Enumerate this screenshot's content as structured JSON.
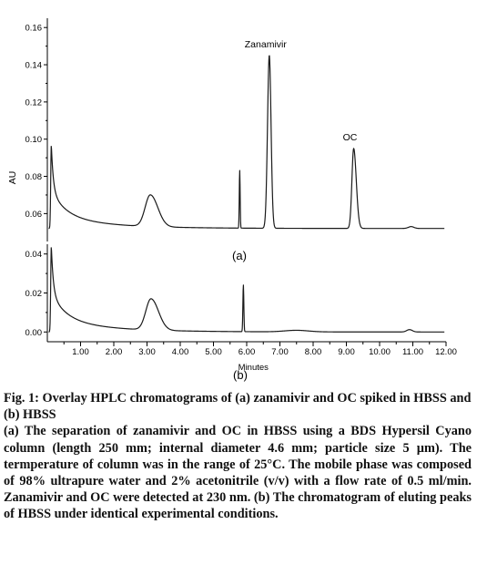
{
  "chart_data": {
    "type": "line",
    "xlabel": "Minutes",
    "ylabel": "AU",
    "xlim": [
      0,
      12
    ],
    "x_ticks": [
      "1.00",
      "2.00",
      "3.00",
      "4.00",
      "5.00",
      "6.00",
      "7.00",
      "8.00",
      "9.00",
      "10.00",
      "11.00",
      "12.00"
    ],
    "panels": [
      {
        "label": "(a)",
        "ylim": [
          0.045,
          0.165
        ],
        "y_ticks": [
          "0.06",
          "0.08",
          "0.10",
          "0.12",
          "0.14",
          "0.16"
        ],
        "baseline": 0.052,
        "peaks": [
          {
            "x": 0.12,
            "y": 0.097
          },
          {
            "x": 3.1,
            "y": 0.069
          },
          {
            "x": 5.79,
            "y": 0.083
          },
          {
            "x": 6.68,
            "y": 0.145,
            "label": "Zanamivir"
          },
          {
            "x": 9.22,
            "y": 0.095,
            "label": "OC"
          },
          {
            "x": 10.95,
            "y": 0.053
          }
        ]
      },
      {
        "label": "(b)",
        "ylim": [
          -0.005,
          0.045
        ],
        "y_ticks": [
          "0.00",
          "0.02",
          "0.04"
        ],
        "baseline": 0.0,
        "peaks": [
          {
            "x": 0.12,
            "y": 0.044
          },
          {
            "x": 3.12,
            "y": 0.016
          },
          {
            "x": 5.9,
            "y": 0.024
          },
          {
            "x": 7.5,
            "y": 0.0008
          },
          {
            "x": 10.9,
            "y": 0.0012
          }
        ]
      }
    ]
  },
  "caption": {
    "title": "Fig. 1: Overlay HPLC chromatograms of (a) zanamivir and OC spiked in HBSS and (b) HBSS",
    "body": "(a) The separation of zanamivir and OC in HBSS using a BDS Hypersil Cyano column (length 250 mm; internal diameter 4.6 mm; particle size 5 µm). The termperature of column was in the range of 25°C. The mobile phase was composed of 98% ultrapure water and 2% acetonitrile (v/v) with a flow rate of 0.5 ml/min. Zanamivir and OC were detected at 230 nm. (b) The chromatogram of eluting peaks of HBSS under identical experimental conditions."
  }
}
